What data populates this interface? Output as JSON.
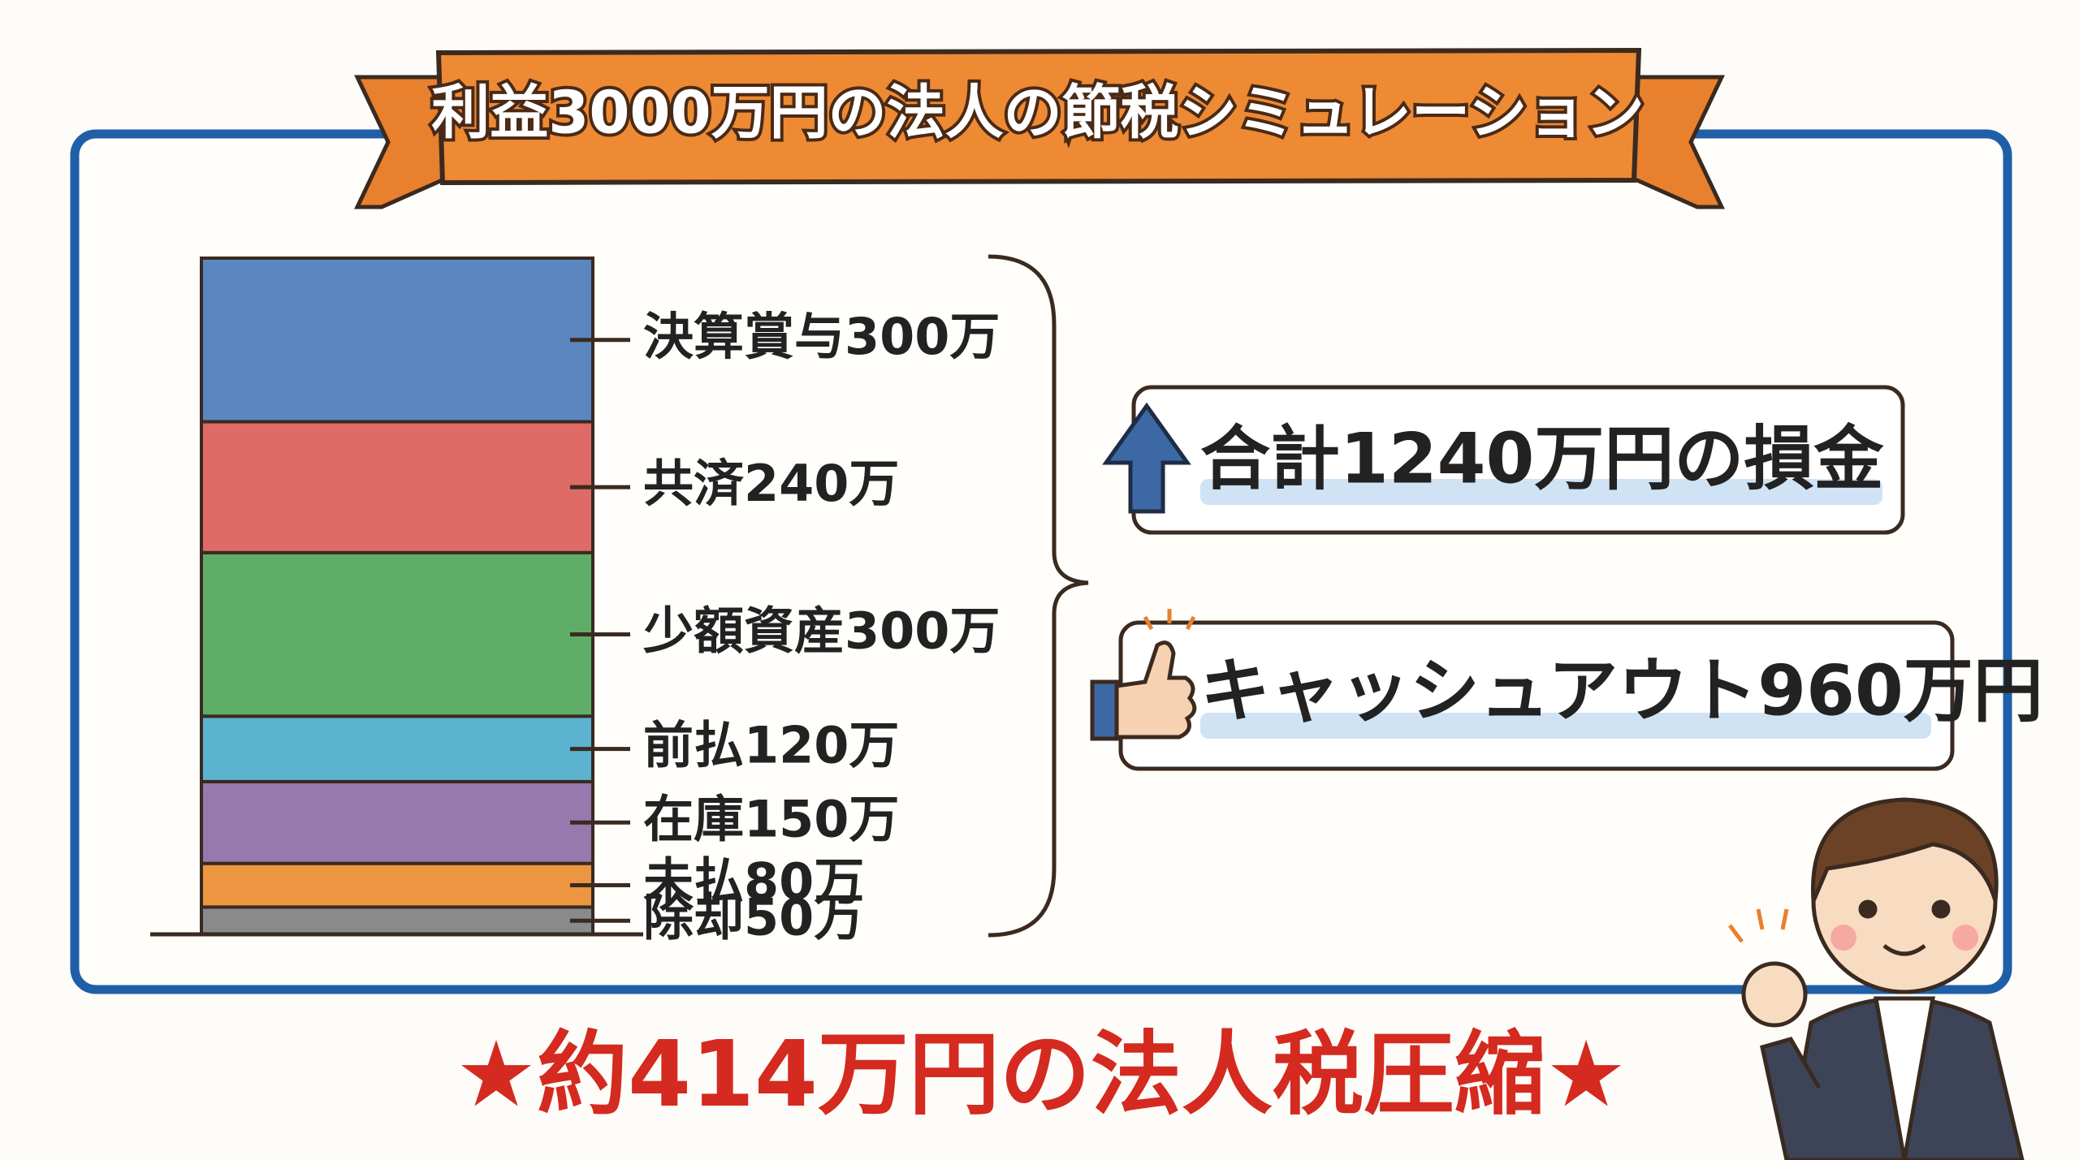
{
  "chart_data": {
    "type": "stacked_bar",
    "title": "利益3000万円の法人の節税シミュレーション",
    "values": [
      300,
      240,
      300,
      120,
      150,
      80,
      50
    ],
    "value_labels": [
      "決算賞与300万",
      "共済240万",
      "少額資産300万",
      "前払120万",
      "在庫150万",
      "未払80万",
      "除却50万"
    ],
    "colors": [
      "#5b86c0",
      "#de6b66",
      "#5fae68",
      "#5bb3cf",
      "#9878ad",
      "#ec9641",
      "#8a8a8a"
    ],
    "annotations": [
      "合計1240万円の損金",
      "キャッシュアウト960万円"
    ],
    "footer": "★約414万円の法人税圧縮★"
  }
}
